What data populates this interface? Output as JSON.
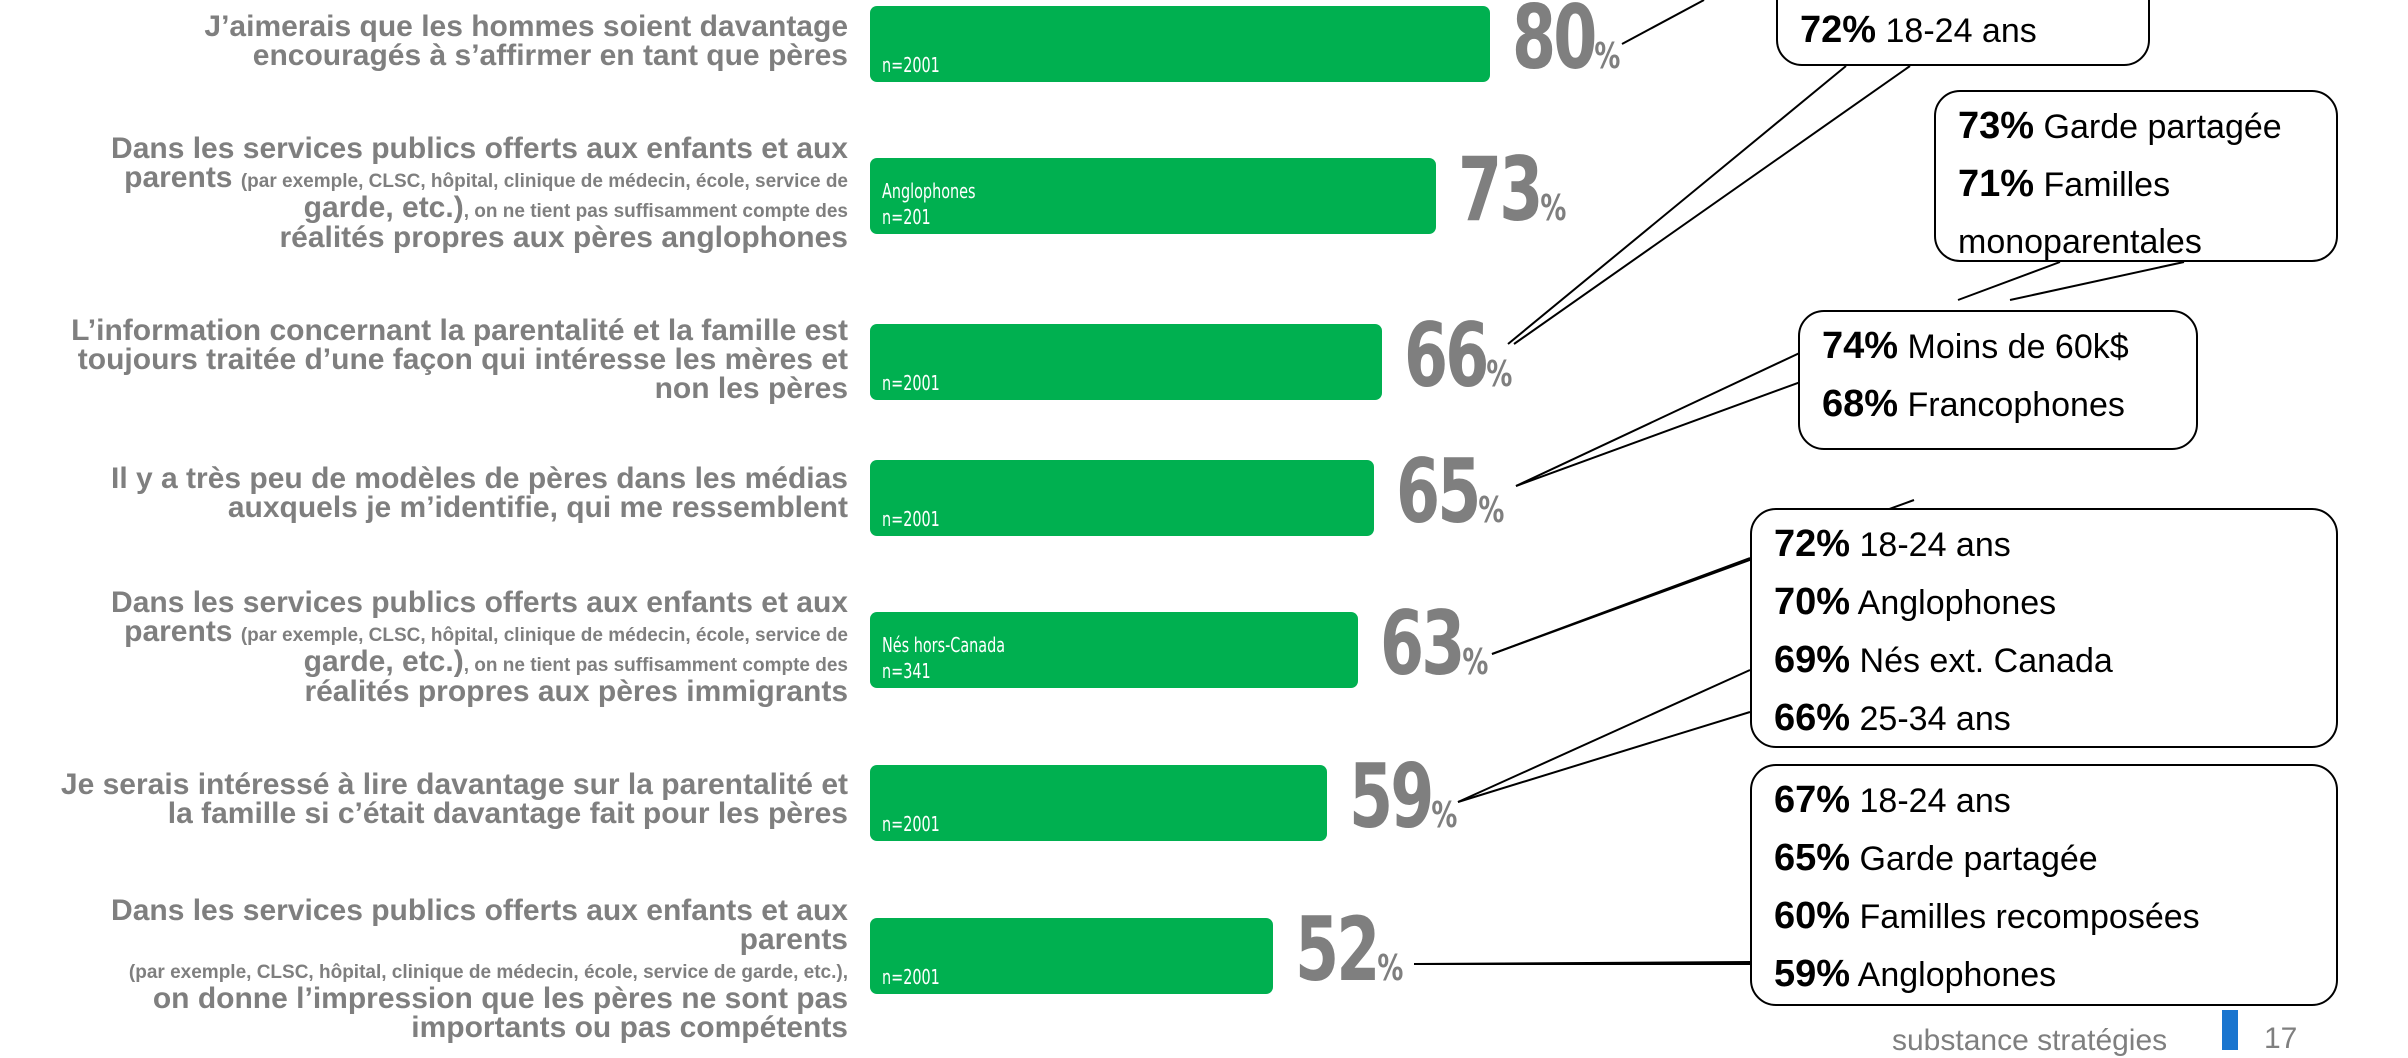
{
  "chart_data": {
    "type": "bar",
    "orientation": "horizontal",
    "unit": "%",
    "xlim": [
      0,
      100
    ],
    "grid": false,
    "items": [
      {
        "label": "J’aimerais que les hommes soient davantage encouragés à s’affirmer en tant que pères",
        "label_lines": [
          "J’aimerais que les hommes soient davantage",
          "encouragés à s’affirmer en tant que pères"
        ],
        "value": 80,
        "base_lines": [
          "n=2001"
        ]
      },
      {
        "label": "Dans les services publics offerts aux enfants et aux parents (par exemple, CLSC, hôpital, clinique de médecin, école, service de garde, etc.), on ne tient pas suffisamment compte des réalités propres aux pères anglophones",
        "label_lines": [
          "Dans les services publics offerts aux enfants et aux",
          "parents |(par exemple, CLSC, hôpital, clinique de médecin, école, service de",
          "garde, etc.)|, on ne tient pas suffisamment compte des",
          "réalités propres aux pères anglophones"
        ],
        "value": 73,
        "base_lines": [
          "Anglophones",
          "n=201"
        ]
      },
      {
        "label": "L’information concernant la parentalité et la famille est toujours traitée d’une façon qui intéresse les mères et non les pères",
        "label_lines": [
          "L’information concernant la parentalité et la famille est",
          "toujours traitée d’une façon qui intéresse les mères et",
          "non les pères"
        ],
        "value": 66,
        "base_lines": [
          "n=2001"
        ]
      },
      {
        "label": "Il y a très peu de modèles de pères dans les médias auxquels je m’identifie, qui me ressemblent",
        "label_lines": [
          "Il y a très peu de modèles de pères dans les médias",
          "auxquels je m’identifie, qui me ressemblent"
        ],
        "value": 65,
        "base_lines": [
          "n=2001"
        ]
      },
      {
        "label": "Dans les services publics offerts aux enfants et aux parents (par exemple, CLSC, hôpital, clinique de médecin, école, service de garde, etc.), on ne tient pas suffisamment compte des réalités propres aux pères immigrants",
        "label_lines": [
          "Dans les services publics offerts aux enfants et aux",
          "parents |(par exemple, CLSC, hôpital, clinique de médecin, école, service de",
          "garde, etc.)|, on ne tient pas suffisamment compte des",
          "réalités propres aux pères immigrants"
        ],
        "value": 63,
        "base_lines": [
          "Nés hors-Canada",
          "n=341"
        ]
      },
      {
        "label": "Je serais intéressé à lire davantage sur la parentalité et la famille si c’était davantage fait pour les pères",
        "label_lines": [
          "Je serais intéressé à lire davantage sur la parentalité et",
          "la famille si c’était davantage fait pour les pères"
        ],
        "value": 59,
        "base_lines": [
          "n=2001"
        ]
      },
      {
        "label": "Dans les services publics offerts aux enfants et aux parents (par exemple, CLSC, hôpital, clinique de médecin, école, service de garde, etc.), on donne l’impression que les pères ne sont pas importants ou pas compétents",
        "label_lines": [
          "Dans les services publics offerts aux enfants et aux",
          "parents",
          "|(par exemple, CLSC, hôpital, clinique de médecin, école, service de garde, etc.),|",
          "on donne l’impression que les pères ne sont pas",
          "importants ou pas compétents"
        ],
        "value": 52,
        "base_lines": [
          "n=2001"
        ]
      }
    ],
    "callouts": [
      {
        "points_to": [
          0,
          2
        ],
        "entries": [
          {
            "pct": "72%",
            "text": "18-24 ans"
          }
        ]
      },
      {
        "points_to": [
          2
        ],
        "entries": [
          {
            "pct": "73%",
            "text": "Garde partagée"
          },
          {
            "pct": "71%",
            "text": "Familles"
          },
          {
            "pct": "",
            "text": "monoparentales"
          }
        ]
      },
      {
        "points_to": [
          3
        ],
        "entries": [
          {
            "pct": "74%",
            "text": "Moins de 60k$"
          },
          {
            "pct": "68%",
            "text": "Francophones"
          }
        ]
      },
      {
        "points_to": [
          4,
          5
        ],
        "entries": [
          {
            "pct": "72%",
            "text": "18-24 ans"
          },
          {
            "pct": "70%",
            "text": "Anglophones"
          },
          {
            "pct": "69%",
            "text": "Nés ext. Canada"
          },
          {
            "pct": "66%",
            "text": "25-34 ans"
          }
        ]
      },
      {
        "points_to": [
          6
        ],
        "entries": [
          {
            "pct": "67%",
            "text": "18-24 ans"
          },
          {
            "pct": "65%",
            "text": "Garde partagée"
          },
          {
            "pct": "60%",
            "text": "Familles recomposées"
          },
          {
            "pct": "59%",
            "text": "Anglophones"
          }
        ]
      }
    ]
  },
  "footer": {
    "brand": "substance stratégies",
    "page": "17"
  }
}
